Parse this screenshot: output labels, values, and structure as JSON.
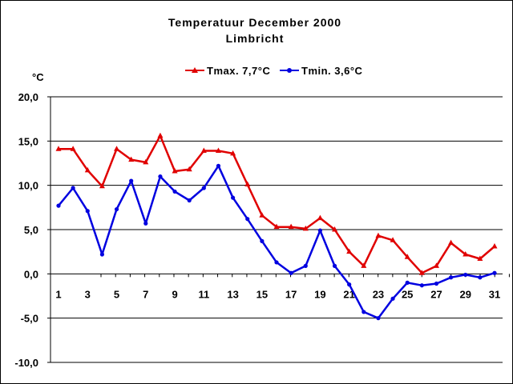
{
  "chart_data": {
    "type": "line",
    "title": "Temperatuur December 2000",
    "subtitle": "Limbricht",
    "ylabel": "°C",
    "ylim": [
      -10,
      20
    ],
    "yticks": [
      -10,
      -5,
      0,
      5,
      10,
      15,
      20
    ],
    "ytick_labels": [
      "-10,0",
      "-5,0",
      "0,0",
      "5,0",
      "10,0",
      "15,0",
      "20,0"
    ],
    "x": [
      1,
      2,
      3,
      4,
      5,
      6,
      7,
      8,
      9,
      10,
      11,
      12,
      13,
      14,
      15,
      16,
      17,
      18,
      19,
      20,
      21,
      22,
      23,
      24,
      25,
      26,
      27,
      28,
      29,
      30,
      31
    ],
    "xtick_labels": [
      "1",
      "3",
      "5",
      "7",
      "9",
      "11",
      "13",
      "15",
      "17",
      "19",
      "21",
      "23",
      "25",
      "27",
      "29",
      "31"
    ],
    "grid": true,
    "legend_position": "top",
    "series": [
      {
        "name": "Tmax. 7,7°C",
        "color": "#e00000",
        "marker": "triangle",
        "values": [
          14.1,
          14.1,
          11.7,
          9.9,
          14.1,
          12.9,
          12.6,
          15.6,
          11.6,
          11.8,
          13.9,
          13.9,
          13.6,
          10.1,
          6.6,
          5.3,
          5.3,
          5.1,
          6.3,
          5.0,
          2.5,
          0.9,
          4.3,
          3.8,
          1.9,
          0.1,
          0.9,
          3.5,
          2.2,
          1.7,
          3.1
        ]
      },
      {
        "name": "Tmin. 3,6°C",
        "color": "#0000e0",
        "marker": "circle",
        "values": [
          7.7,
          9.7,
          7.1,
          2.2,
          7.3,
          10.5,
          5.7,
          11.0,
          9.3,
          8.3,
          9.7,
          12.2,
          8.6,
          6.2,
          3.7,
          1.3,
          0.1,
          0.9,
          4.9,
          0.9,
          -1.2,
          -4.3,
          -5.0,
          -2.8,
          -1.0,
          -1.3,
          -1.1,
          -0.4,
          -0.1,
          -0.4,
          0.1
        ]
      }
    ]
  }
}
